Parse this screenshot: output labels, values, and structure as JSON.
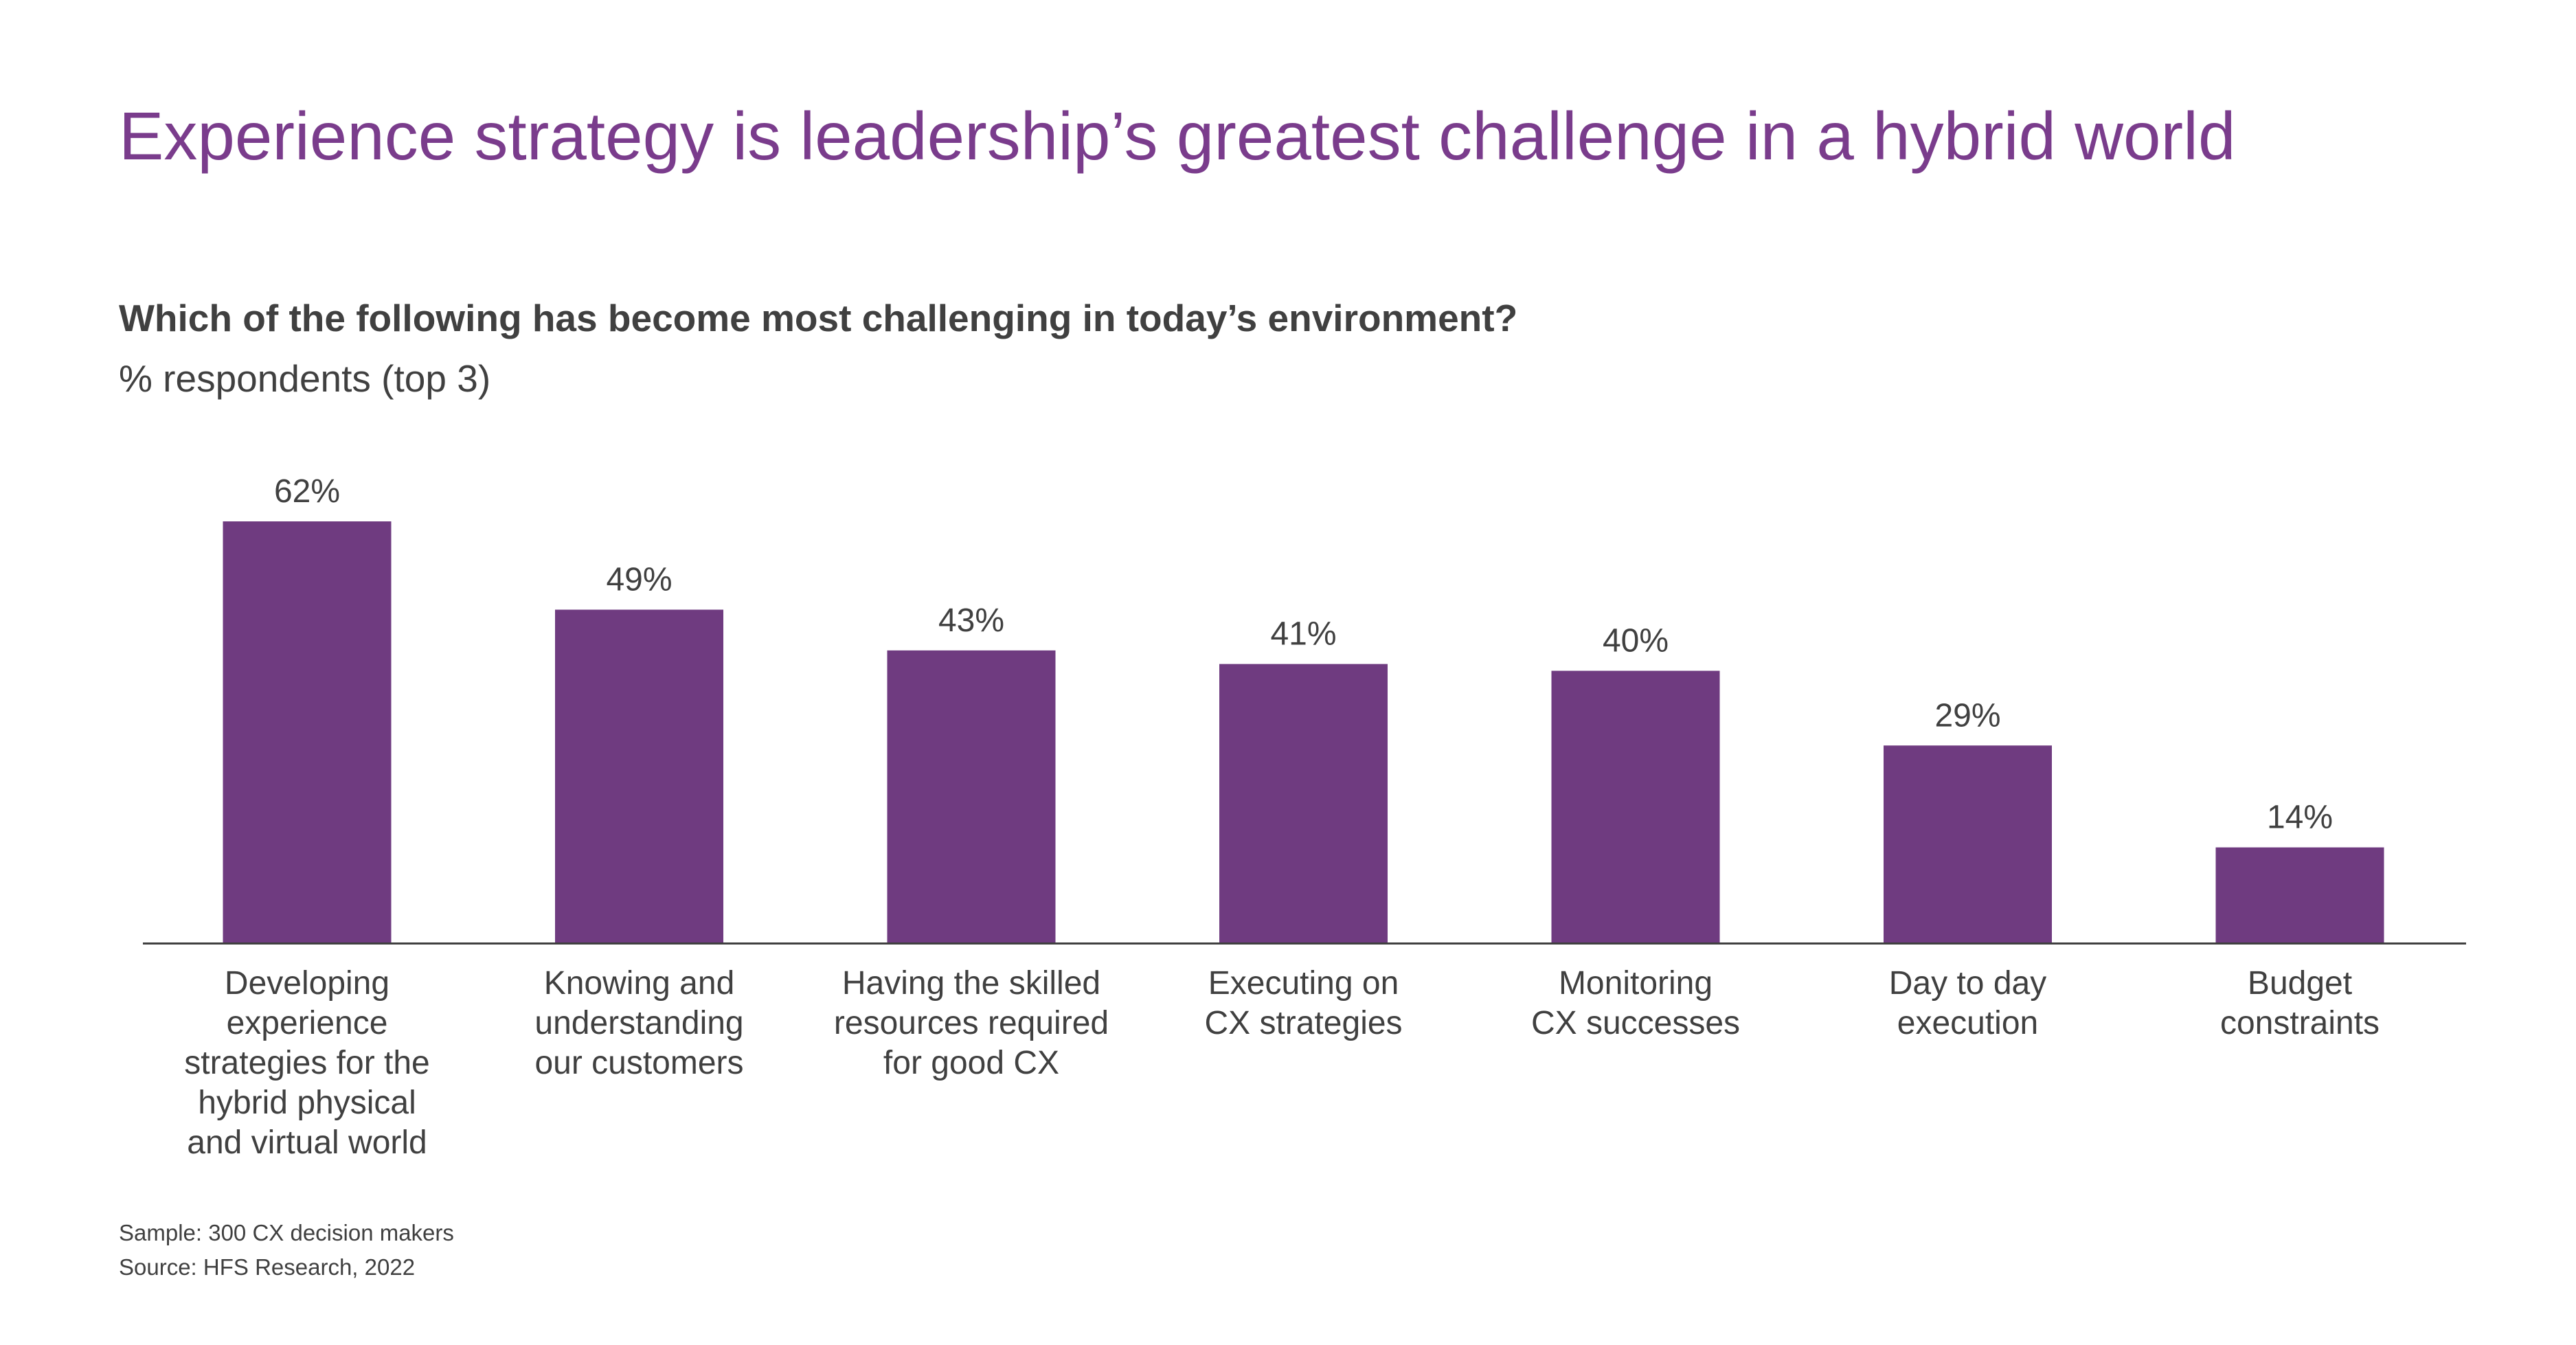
{
  "title": "Experience strategy is leadership’s greatest challenge in a hybrid world",
  "question": "Which of the following has become most challenging in today’s environment?",
  "subtitle": "% respondents (top 3)",
  "colors": {
    "title": "#7a3c8c",
    "bar": "#6f3b80",
    "text": "#404040",
    "axis": "#404040"
  },
  "chart_data": {
    "type": "bar",
    "title": "Which of the following has become most challenging in today’s environment?",
    "ylabel": "% respondents (top 3)",
    "xlabel": "",
    "grid": false,
    "categories": [
      "Developing\nexperience\nstrategies for the\nhybrid physical\nand virtual world",
      "Knowing and\nunderstanding\nour customers",
      "Having the skilled\nresources required\nfor good CX",
      "Executing on\nCX strategies",
      "Monitoring\nCX successes",
      "Day to day\nexecution",
      "Budget\nconstraints"
    ],
    "values": [
      62,
      49,
      43,
      41,
      40,
      29,
      14
    ],
    "value_labels": [
      "62%",
      "49%",
      "43%",
      "41%",
      "40%",
      "29%",
      "14%"
    ],
    "ylim": [
      0,
      62
    ]
  },
  "footnotes": {
    "sample": "Sample: 300 CX decision makers",
    "source": "Source: HFS Research, 2022"
  }
}
